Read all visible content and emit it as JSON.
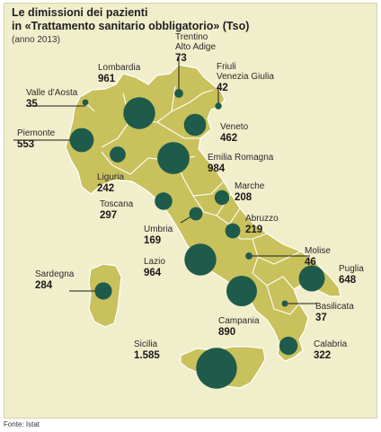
{
  "title": {
    "line1": "Le dimissioni dei pazienti",
    "line2": "in «Trattamento sanitario obbligatorio» (Tso)"
  },
  "subtitle": "(anno 2013)",
  "source": "Fonte: Istat",
  "colors": {
    "background": "#f1eecb",
    "land": "#c9c15c",
    "land_stroke": "#ffffff",
    "bubble": "#1f5b4a",
    "leader_line": "#1a1a1a",
    "text": "#1a1a1a"
  },
  "regions": [
    {
      "id": "valle-d-aosta",
      "name": "Valle d'Aosta",
      "value": "35"
    },
    {
      "id": "piemonte",
      "name": "Piemonte",
      "value": "553"
    },
    {
      "id": "lombardia",
      "name": "Lombardia",
      "value": "961"
    },
    {
      "id": "trentino-alto-adige",
      "name": "Trentino\nAlto Adige",
      "value": "73"
    },
    {
      "id": "friuli-venezia-giulia",
      "name": "Friuli\nVenezia Giulia",
      "value": "42"
    },
    {
      "id": "veneto",
      "name": "Veneto",
      "value": "462"
    },
    {
      "id": "liguria",
      "name": "Liguria",
      "value": "242"
    },
    {
      "id": "emilia-romagna",
      "name": "Emilia Romagna",
      "value": "984"
    },
    {
      "id": "toscana",
      "name": "Toscana",
      "value": "297"
    },
    {
      "id": "marche",
      "name": "Marche",
      "value": "208"
    },
    {
      "id": "umbria",
      "name": "Umbria",
      "value": "169"
    },
    {
      "id": "abruzzo",
      "name": "Abruzzo",
      "value": "219"
    },
    {
      "id": "lazio",
      "name": "Lazio",
      "value": "964"
    },
    {
      "id": "molise",
      "name": "Molise",
      "value": "46"
    },
    {
      "id": "puglia",
      "name": "Puglia",
      "value": "648"
    },
    {
      "id": "sardegna",
      "name": "Sardegna",
      "value": "284"
    },
    {
      "id": "campania",
      "name": "Campania",
      "value": "890"
    },
    {
      "id": "basilicata",
      "name": "Basilicata",
      "value": "37"
    },
    {
      "id": "sicilia",
      "name": "Sicilia",
      "value": "1.585"
    },
    {
      "id": "calabria",
      "name": "Calabria",
      "value": "322"
    }
  ]
}
